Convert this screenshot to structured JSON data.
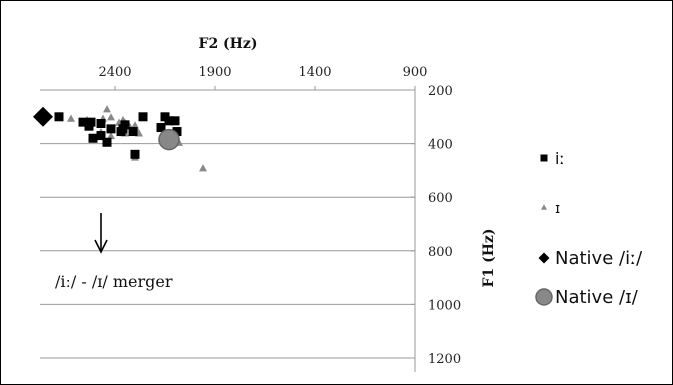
{
  "chart_data": {
    "type": "scatter",
    "xlabel": "F2 (Hz)",
    "ylabel": "F1 (Hz)",
    "x_axis": {
      "reversed": true,
      "min": 900,
      "max": 2900,
      "ticks": [
        2400,
        1900,
        1400,
        900
      ],
      "position": "top"
    },
    "y_axis": {
      "reversed": true,
      "min": 200,
      "max": 1200,
      "ticks": [
        200,
        400,
        600,
        800,
        1000,
        1200
      ],
      "position": "right"
    },
    "grid": "horizontal",
    "legend_position": "right",
    "annotation": {
      "text": "/iː/ - /ɪ/ merger",
      "arrow": "down"
    },
    "series": [
      {
        "name": "iː",
        "marker": "square",
        "color": "#000000",
        "points": [
          [
            2680,
            300
          ],
          [
            2560,
            320
          ],
          [
            2520,
            320
          ],
          [
            2530,
            335
          ],
          [
            2470,
            325
          ],
          [
            2420,
            345
          ],
          [
            2350,
            330
          ],
          [
            2360,
            345
          ],
          [
            2370,
            355
          ],
          [
            2310,
            355
          ],
          [
            2470,
            370
          ],
          [
            2440,
            395
          ],
          [
            2510,
            380
          ],
          [
            2300,
            440
          ],
          [
            2260,
            300
          ],
          [
            2150,
            300
          ],
          [
            2170,
            340
          ],
          [
            2130,
            315
          ],
          [
            2100,
            315
          ],
          [
            2090,
            355
          ]
        ]
      },
      {
        "name": "ɪ",
        "marker": "triangle",
        "color": "#888888",
        "points": [
          [
            2620,
            305
          ],
          [
            2540,
            310
          ],
          [
            2460,
            305
          ],
          [
            2420,
            300
          ],
          [
            2380,
            320
          ],
          [
            2360,
            310
          ],
          [
            2350,
            320
          ],
          [
            2330,
            330
          ],
          [
            2300,
            330
          ],
          [
            2290,
            350
          ],
          [
            2280,
            360
          ],
          [
            2350,
            360
          ],
          [
            2420,
            370
          ],
          [
            2300,
            450
          ],
          [
            2080,
            395
          ],
          [
            1960,
            490
          ],
          [
            2440,
            270
          ],
          [
            2470,
            355
          ]
        ]
      },
      {
        "name": "Native /iː/",
        "marker": "diamond",
        "color": "#000000",
        "points": [
          [
            2760,
            300
          ]
        ]
      },
      {
        "name": "Native /ɪ/",
        "marker": "circle",
        "color": "#888888",
        "points": [
          [
            2130,
            385
          ]
        ]
      }
    ]
  }
}
